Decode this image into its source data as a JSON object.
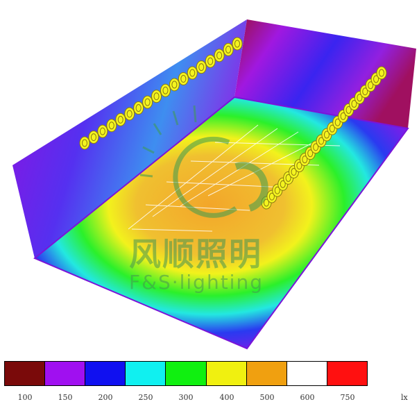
{
  "legend": {
    "colors": [
      "#7a0a0a",
      "#a010f0",
      "#1010f0",
      "#10f0f0",
      "#10f010",
      "#f0f010",
      "#f0a010",
      "#ffffff",
      "#ff1010"
    ],
    "ticks": [
      "100",
      "150",
      "200",
      "250",
      "300",
      "400",
      "500",
      "600",
      "750"
    ],
    "unit": "lx"
  },
  "watermark": {
    "cn": "风顺照明",
    "en": "F&S·lighting"
  }
}
